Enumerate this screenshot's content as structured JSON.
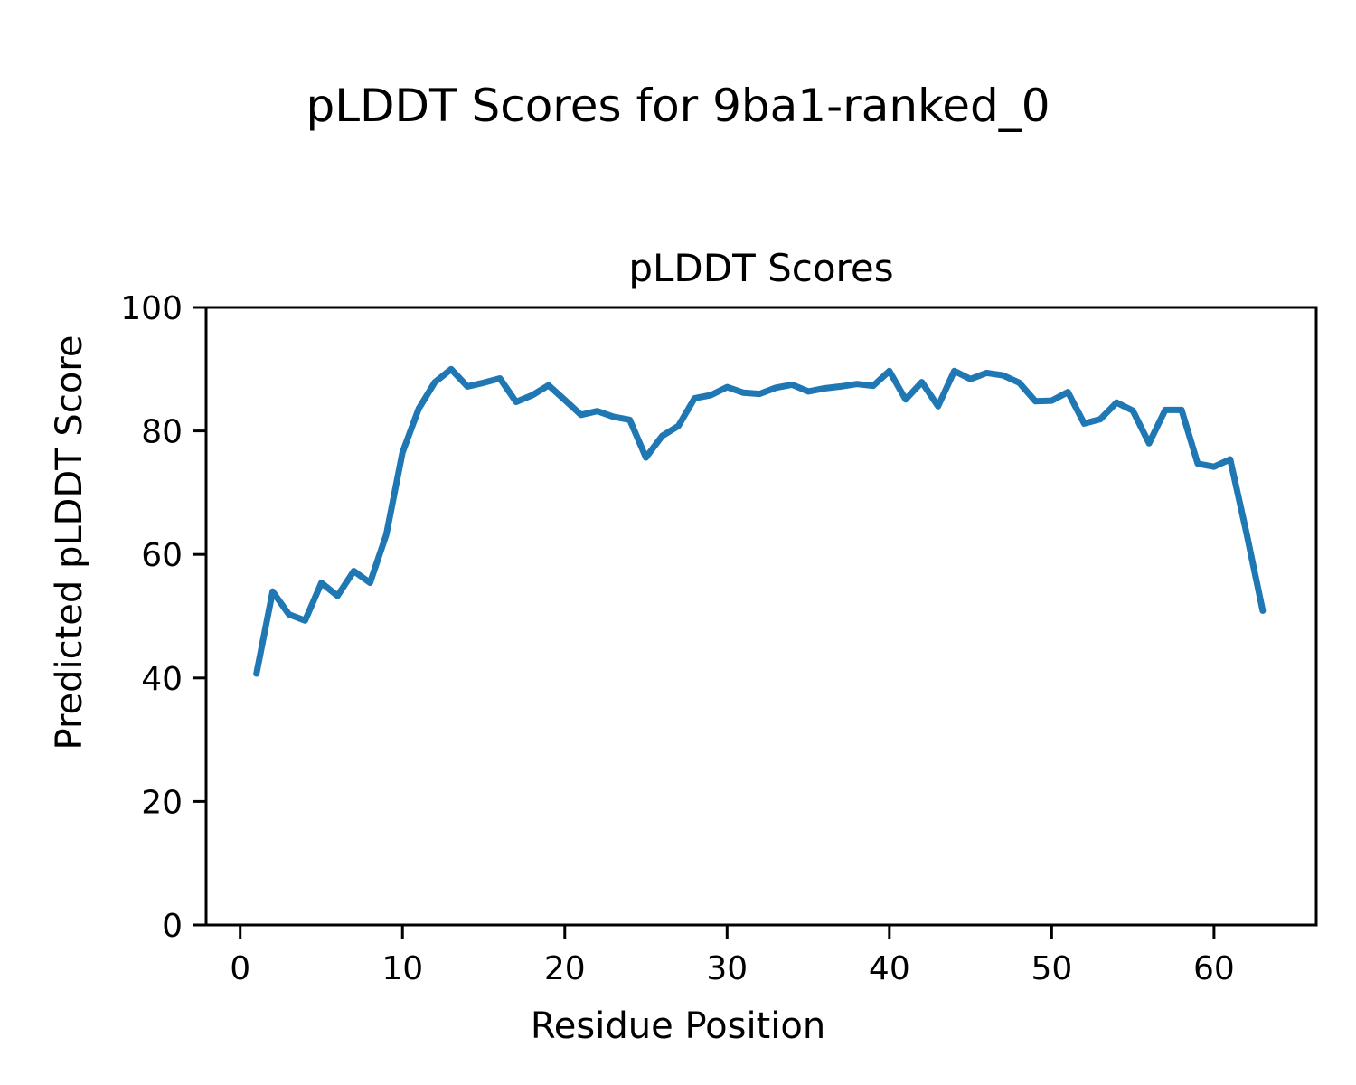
{
  "figure": {
    "suptitle": "pLDDT Scores for 9ba1-ranked_0"
  },
  "chart_data": {
    "type": "line",
    "title": "pLDDT Scores",
    "xlabel": "Residue Position",
    "ylabel": "Predicted pLDDT Score",
    "xlim": [
      -2.1,
      66.3
    ],
    "ylim": [
      0,
      100
    ],
    "x_ticks": [
      0,
      10,
      20,
      30,
      40,
      50,
      60
    ],
    "y_ticks": [
      0,
      20,
      40,
      60,
      80,
      100
    ],
    "grid": false,
    "legend": null,
    "line_color": "#1f77b4",
    "background_color": "#ffffff",
    "axis_color": "#000000",
    "series": [
      {
        "name": "pLDDT",
        "x": [
          1,
          2,
          3,
          4,
          5,
          6,
          7,
          8,
          9,
          10,
          11,
          12,
          13,
          14,
          15,
          16,
          17,
          18,
          19,
          20,
          21,
          22,
          23,
          24,
          25,
          26,
          27,
          28,
          29,
          30,
          31,
          32,
          33,
          34,
          35,
          36,
          37,
          38,
          39,
          40,
          41,
          42,
          43,
          44,
          45,
          46,
          47,
          48,
          49,
          50,
          51,
          52,
          53,
          54,
          55,
          56,
          57,
          58,
          59,
          60,
          61,
          62,
          63
        ],
        "y": [
          40.7,
          54.0,
          50.3,
          49.3,
          55.4,
          53.3,
          57.3,
          55.4,
          63.2,
          76.5,
          83.6,
          87.9,
          90.0,
          87.2,
          87.8,
          88.5,
          84.7,
          85.8,
          87.4,
          85.0,
          82.6,
          83.2,
          82.3,
          81.8,
          75.7,
          79.2,
          80.8,
          85.3,
          85.8,
          87.1,
          86.2,
          86.0,
          87.0,
          87.5,
          86.4,
          86.9,
          87.2,
          87.6,
          87.3,
          89.7,
          85.1,
          87.9,
          84.0,
          89.7,
          88.4,
          89.4,
          89.0,
          87.8,
          84.8,
          84.9,
          86.3,
          81.2,
          81.9,
          84.6,
          83.3,
          78.0,
          83.4,
          83.4,
          74.7,
          74.2,
          75.4,
          63.5,
          50.9
        ]
      }
    ]
  }
}
